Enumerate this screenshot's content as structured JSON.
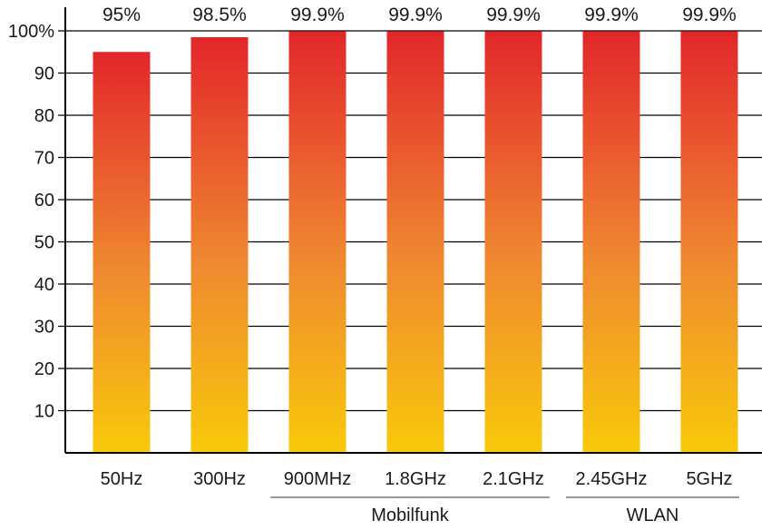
{
  "chart_data": {
    "type": "bar",
    "categories": [
      "50Hz",
      "300Hz",
      "900MHz",
      "1.8GHz",
      "2.1GHz",
      "2.45GHz",
      "5GHz"
    ],
    "values": [
      95,
      98.5,
      99.9,
      99.9,
      99.9,
      99.9,
      99.9
    ],
    "data_labels": [
      "95%",
      "98.5%",
      "99.9%",
      "99.9%",
      "99.9%",
      "99.9%",
      "99.9%"
    ],
    "yticks": [
      {
        "value": 10,
        "label": "10"
      },
      {
        "value": 20,
        "label": "20"
      },
      {
        "value": 30,
        "label": "30"
      },
      {
        "value": 40,
        "label": "40"
      },
      {
        "value": 50,
        "label": "50"
      },
      {
        "value": 60,
        "label": "60"
      },
      {
        "value": 70,
        "label": "70"
      },
      {
        "value": 80,
        "label": "80"
      },
      {
        "value": 90,
        "label": "90"
      },
      {
        "value": 100,
        "label": "100%"
      }
    ],
    "ylim": [
      0,
      100
    ],
    "grid": true,
    "groups": [
      {
        "label": "Mobilfunk",
        "categories": [
          "900MHz",
          "1.8GHz",
          "2.1GHz"
        ]
      },
      {
        "label": "WLAN",
        "categories": [
          "2.45GHz",
          "5GHz"
        ]
      }
    ],
    "colors": {
      "bar_top": "#e3262b",
      "bar_mid": "#ef8a30",
      "bar_bottom": "#f9c90a",
      "axis": "#000000",
      "grid": "#000000"
    }
  }
}
